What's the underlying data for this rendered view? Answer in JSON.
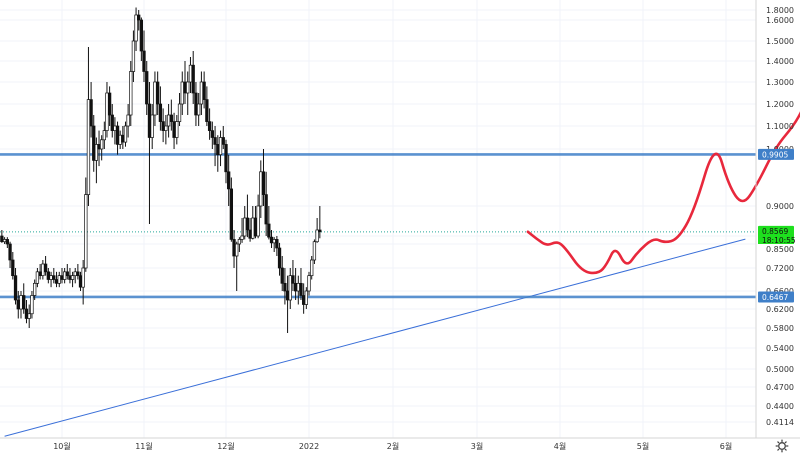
{
  "chart_data": {
    "type": "candlestick",
    "y_ticks": [
      "1.8000",
      "1.6000",
      "1.5000",
      "1.4000",
      "1.3000",
      "1.2000",
      "1.1000",
      "1.0000",
      "0.9000",
      "0.8500",
      "0.7800",
      "0.7200",
      "0.6600",
      "0.6200",
      "0.5800",
      "0.5400",
      "0.5000",
      "0.4700",
      "0.4400",
      "0.4114"
    ],
    "x_ticks": [
      {
        "label": "10월",
        "date": "2021-10-01"
      },
      {
        "label": "11월",
        "date": "2021-11-01"
      },
      {
        "label": "12월",
        "date": "2021-12-01"
      },
      {
        "label": "2022",
        "date": "2022-01-01"
      },
      {
        "label": "2월",
        "date": "2022-02-01"
      },
      {
        "label": "3월",
        "date": "2022-03-01"
      },
      {
        "label": "4월",
        "date": "2022-04-01"
      },
      {
        "label": "5월",
        "date": "2022-05-01"
      },
      {
        "label": "6월",
        "date": "2022-06-01"
      }
    ],
    "horizontal_levels": [
      {
        "value": 0.9905,
        "label": "0.9905",
        "color": "#3f7fc8"
      },
      {
        "value": 0.6467,
        "label": "0.6467",
        "color": "#3f7fc8"
      }
    ],
    "current_price": {
      "value": 0.8569,
      "label": "0.8569",
      "countdown": "18:10:55",
      "color": "#1ee01e"
    },
    "extra_price_label": {
      "value": 0.85,
      "label": "0.8500"
    },
    "trendline": {
      "from": {
        "date": "2021-09-10",
        "value": 0.386
      },
      "to": {
        "date": "2022-06-08",
        "value": 0.823
      },
      "color": "#3a6fd8"
    },
    "projection": {
      "color": "#e8283c",
      "points": [
        {
          "date": "2022-03-20",
          "value": 0.857
        },
        {
          "date": "2022-03-23",
          "value": 0.83
        },
        {
          "date": "2022-03-27",
          "value": 0.775
        },
        {
          "date": "2022-03-31",
          "value": 0.805
        },
        {
          "date": "2022-04-03",
          "value": 0.77
        },
        {
          "date": "2022-04-09",
          "value": 0.71
        },
        {
          "date": "2022-04-15",
          "value": 0.705
        },
        {
          "date": "2022-04-18",
          "value": 0.73
        },
        {
          "date": "2022-04-21",
          "value": 0.775
        },
        {
          "date": "2022-04-25",
          "value": 0.72
        },
        {
          "date": "2022-04-29",
          "value": 0.76
        },
        {
          "date": "2022-05-05",
          "value": 0.835
        },
        {
          "date": "2022-05-09",
          "value": 0.79
        },
        {
          "date": "2022-05-14",
          "value": 0.82
        },
        {
          "date": "2022-05-20",
          "value": 0.89
        },
        {
          "date": "2022-05-28",
          "value": 1.04
        },
        {
          "date": "2022-06-02",
          "value": 0.935
        },
        {
          "date": "2022-06-07",
          "value": 0.9
        },
        {
          "date": "2022-06-12",
          "value": 0.935
        },
        {
          "date": "2022-06-19",
          "value": 1.01
        },
        {
          "date": "2022-06-26",
          "value": 1.11
        },
        {
          "date": "2022-06-30",
          "value": 1.21
        }
      ]
    },
    "candles": [
      [
        0.85,
        0.86,
        0.79,
        0.8
      ],
      [
        0.8,
        0.84,
        0.78,
        0.82
      ],
      [
        0.82,
        0.84,
        0.77,
        0.78
      ],
      [
        0.78,
        0.8,
        0.72,
        0.74
      ],
      [
        0.74,
        0.76,
        0.69,
        0.7
      ],
      [
        0.7,
        0.72,
        0.63,
        0.64
      ],
      [
        0.64,
        0.66,
        0.6,
        0.62
      ],
      [
        0.62,
        0.66,
        0.6,
        0.65
      ],
      [
        0.65,
        0.68,
        0.61,
        0.62
      ],
      [
        0.62,
        0.64,
        0.59,
        0.6
      ],
      [
        0.6,
        0.63,
        0.58,
        0.61
      ],
      [
        0.61,
        0.66,
        0.6,
        0.65
      ],
      [
        0.65,
        0.69,
        0.64,
        0.68
      ],
      [
        0.68,
        0.72,
        0.67,
        0.71
      ],
      [
        0.71,
        0.73,
        0.69,
        0.7
      ],
      [
        0.7,
        0.74,
        0.69,
        0.73
      ],
      [
        0.73,
        0.75,
        0.7,
        0.71
      ],
      [
        0.71,
        0.72,
        0.68,
        0.69
      ],
      [
        0.69,
        0.71,
        0.67,
        0.7
      ],
      [
        0.7,
        0.72,
        0.68,
        0.69
      ],
      [
        0.69,
        0.71,
        0.67,
        0.68
      ],
      [
        0.68,
        0.71,
        0.67,
        0.7
      ],
      [
        0.7,
        0.72,
        0.68,
        0.69
      ],
      [
        0.69,
        0.72,
        0.68,
        0.71
      ],
      [
        0.71,
        0.73,
        0.69,
        0.7
      ],
      [
        0.7,
        0.72,
        0.68,
        0.69
      ],
      [
        0.69,
        0.71,
        0.67,
        0.7
      ],
      [
        0.7,
        0.72,
        0.68,
        0.71
      ],
      [
        0.71,
        0.73,
        0.69,
        0.7
      ],
      [
        0.7,
        0.71,
        0.66,
        0.67
      ],
      [
        0.67,
        0.74,
        0.63,
        0.72
      ],
      [
        0.72,
        0.95,
        0.71,
        0.92
      ],
      [
        0.92,
        1.47,
        0.9,
        1.22
      ],
      [
        1.22,
        1.3,
        1.05,
        1.1
      ],
      [
        1.1,
        1.15,
        0.96,
        0.98
      ],
      [
        0.98,
        1.05,
        0.94,
        1.02
      ],
      [
        1.02,
        1.08,
        0.97,
        1.0
      ],
      [
        1.0,
        1.06,
        0.98,
        1.04
      ],
      [
        1.04,
        1.12,
        1.0,
        1.08
      ],
      [
        1.08,
        1.3,
        1.05,
        1.25
      ],
      [
        1.25,
        1.28,
        1.1,
        1.15
      ],
      [
        1.15,
        1.2,
        1.05,
        1.08
      ],
      [
        1.08,
        1.14,
        1.02,
        1.1
      ],
      [
        1.1,
        1.12,
        0.99,
        1.02
      ],
      [
        1.02,
        1.08,
        1.0,
        1.06
      ],
      [
        1.06,
        1.1,
        1.0,
        1.03
      ],
      [
        1.03,
        1.12,
        1.01,
        1.1
      ],
      [
        1.1,
        1.2,
        1.05,
        1.15
      ],
      [
        1.15,
        1.4,
        1.1,
        1.35
      ],
      [
        1.35,
        1.55,
        1.3,
        1.5
      ],
      [
        1.5,
        1.85,
        1.45,
        1.7
      ],
      [
        1.7,
        1.8,
        1.55,
        1.6
      ],
      [
        1.6,
        1.65,
        1.4,
        1.45
      ],
      [
        1.45,
        1.55,
        1.3,
        1.35
      ],
      [
        1.35,
        1.4,
        1.15,
        1.2
      ],
      [
        1.2,
        1.3,
        0.87,
        1.05
      ],
      [
        1.05,
        1.2,
        1.0,
        1.15
      ],
      [
        1.15,
        1.35,
        1.1,
        1.3
      ],
      [
        1.3,
        1.35,
        1.15,
        1.2
      ],
      [
        1.2,
        1.28,
        1.08,
        1.12
      ],
      [
        1.12,
        1.18,
        1.03,
        1.08
      ],
      [
        1.08,
        1.15,
        1.02,
        1.1
      ],
      [
        1.1,
        1.2,
        1.05,
        1.15
      ],
      [
        1.15,
        1.22,
        1.08,
        1.12
      ],
      [
        1.12,
        1.16,
        1.0,
        1.05
      ],
      [
        1.05,
        1.15,
        1.02,
        1.12
      ],
      [
        1.12,
        1.25,
        1.1,
        1.2
      ],
      [
        1.2,
        1.35,
        1.15,
        1.3
      ],
      [
        1.3,
        1.4,
        1.2,
        1.25
      ],
      [
        1.25,
        1.35,
        1.15,
        1.3
      ],
      [
        1.3,
        1.42,
        1.25,
        1.38
      ],
      [
        1.38,
        1.45,
        1.2,
        1.25
      ],
      [
        1.25,
        1.3,
        1.1,
        1.15
      ],
      [
        1.15,
        1.25,
        1.1,
        1.2
      ],
      [
        1.2,
        1.35,
        1.15,
        1.3
      ],
      [
        1.3,
        1.35,
        1.18,
        1.22
      ],
      [
        1.22,
        1.28,
        1.1,
        1.12
      ],
      [
        1.12,
        1.18,
        1.04,
        1.08
      ],
      [
        1.08,
        1.12,
        1.0,
        1.05
      ],
      [
        1.05,
        1.1,
        0.97,
        1.02
      ],
      [
        1.02,
        1.06,
        0.96,
        0.99
      ],
      [
        0.99,
        1.08,
        0.97,
        1.05
      ],
      [
        1.05,
        1.1,
        1.0,
        1.02
      ],
      [
        1.02,
        1.04,
        0.94,
        0.96
      ],
      [
        0.96,
        0.99,
        0.9,
        0.93
      ],
      [
        0.93,
        0.95,
        0.8,
        0.82
      ],
      [
        0.82,
        0.86,
        0.72,
        0.75
      ],
      [
        0.75,
        0.8,
        0.66,
        0.78
      ],
      [
        0.78,
        0.84,
        0.76,
        0.82
      ],
      [
        0.82,
        0.88,
        0.79,
        0.85
      ],
      [
        0.85,
        0.9,
        0.82,
        0.88
      ],
      [
        0.88,
        0.92,
        0.84,
        0.86
      ],
      [
        0.86,
        0.88,
        0.8,
        0.83
      ],
      [
        0.83,
        0.9,
        0.82,
        0.88
      ],
      [
        0.88,
        0.9,
        0.83,
        0.85
      ],
      [
        0.85,
        0.92,
        0.83,
        0.9
      ],
      [
        0.9,
        0.98,
        0.88,
        0.96
      ],
      [
        0.96,
        1.0,
        0.9,
        0.92
      ],
      [
        0.92,
        0.96,
        0.85,
        0.87
      ],
      [
        0.87,
        0.9,
        0.82,
        0.84
      ],
      [
        0.84,
        0.86,
        0.77,
        0.79
      ],
      [
        0.79,
        0.84,
        0.76,
        0.82
      ],
      [
        0.82,
        0.85,
        0.75,
        0.77
      ],
      [
        0.77,
        0.79,
        0.7,
        0.72
      ],
      [
        0.72,
        0.75,
        0.66,
        0.68
      ],
      [
        0.68,
        0.72,
        0.63,
        0.66
      ],
      [
        0.66,
        0.7,
        0.57,
        0.64
      ],
      [
        0.64,
        0.72,
        0.62,
        0.7
      ],
      [
        0.7,
        0.74,
        0.66,
        0.68
      ],
      [
        0.68,
        0.72,
        0.64,
        0.66
      ],
      [
        0.66,
        0.7,
        0.63,
        0.68
      ],
      [
        0.68,
        0.72,
        0.64,
        0.65
      ],
      [
        0.65,
        0.68,
        0.61,
        0.63
      ],
      [
        0.63,
        0.67,
        0.62,
        0.66
      ],
      [
        0.66,
        0.71,
        0.65,
        0.7
      ],
      [
        0.7,
        0.75,
        0.69,
        0.74
      ],
      [
        0.74,
        0.82,
        0.73,
        0.8
      ],
      [
        0.8,
        0.88,
        0.79,
        0.86
      ],
      [
        0.86,
        0.9,
        0.83,
        0.857
      ]
    ]
  }
}
